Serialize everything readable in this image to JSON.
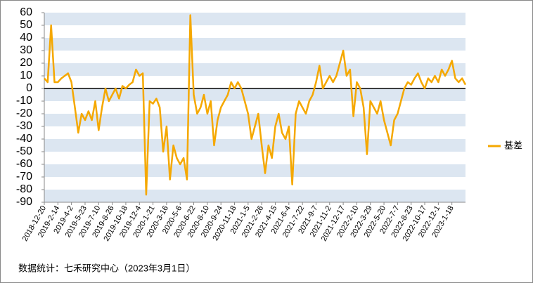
{
  "chart_data": {
    "type": "line",
    "categories": [
      "2018-12-20",
      null,
      null,
      null,
      "2019-2-14",
      null,
      null,
      null,
      "2019-4-2",
      null,
      null,
      null,
      "2019-5-23",
      null,
      null,
      null,
      "2019-7-10",
      null,
      null,
      null,
      "2019-8-26",
      null,
      null,
      null,
      "2019-10-18",
      null,
      null,
      null,
      "2019-12-4",
      null,
      null,
      null,
      "2020-1-21",
      null,
      null,
      null,
      "2020-3-16",
      null,
      null,
      null,
      "2020-5-6",
      null,
      null,
      null,
      "2020-6-22",
      null,
      null,
      null,
      "2020-8-10",
      null,
      null,
      null,
      "2020-9-24",
      null,
      null,
      null,
      "2020-11-18",
      null,
      null,
      null,
      "2021-1-5",
      null,
      null,
      null,
      "2021-2-26",
      null,
      null,
      null,
      "2021-4-15",
      null,
      null,
      null,
      "2021-6-4",
      null,
      null,
      null,
      "2021-7-22",
      null,
      null,
      null,
      "2021-9-7",
      null,
      null,
      null,
      "2021-11-2",
      null,
      null,
      null,
      "2021-12-17",
      null,
      null,
      null,
      "2022-2-10",
      null,
      null,
      null,
      "2022-3-29",
      null,
      null,
      null,
      "2022-5-20",
      null,
      null,
      null,
      "2022-7-7",
      null,
      null,
      null,
      "2022-8-23",
      null,
      null,
      null,
      "2022-10-17",
      null,
      null,
      null,
      "2022-12-1",
      null,
      null,
      null,
      "2023-1-18",
      null,
      null,
      null,
      null
    ],
    "series": [
      {
        "name": "基差",
        "color": "#f5a800",
        "values": [
          8,
          5,
          50,
          5,
          5,
          8,
          10,
          12,
          5,
          -15,
          -35,
          -20,
          -25,
          -18,
          -25,
          -10,
          -33,
          -15,
          0,
          -10,
          -5,
          0,
          -8,
          2,
          0,
          3,
          5,
          15,
          10,
          12,
          -84,
          -10,
          -12,
          -8,
          -15,
          -50,
          -30,
          -72,
          -45,
          -55,
          -60,
          -55,
          -72,
          58,
          -5,
          -20,
          -15,
          -5,
          -20,
          -10,
          -45,
          -25,
          -15,
          -10,
          -5,
          5,
          0,
          5,
          0,
          -10,
          -20,
          -40,
          -30,
          -20,
          -45,
          -67,
          -45,
          -55,
          -30,
          -20,
          -35,
          -40,
          -30,
          -76,
          -20,
          -10,
          -15,
          -20,
          -10,
          -5,
          5,
          18,
          0,
          5,
          10,
          5,
          10,
          20,
          30,
          10,
          15,
          -22,
          5,
          0,
          -15,
          -52,
          -10,
          -15,
          -20,
          -10,
          -25,
          -35,
          -45,
          -25,
          -20,
          -10,
          0,
          5,
          3,
          8,
          12,
          5,
          0,
          8,
          5,
          10,
          5,
          15,
          10,
          15,
          22,
          8,
          5,
          8,
          3
        ]
      }
    ],
    "ylim": [
      -90,
      60
    ],
    "yticks": [
      60,
      50,
      40,
      30,
      20,
      10,
      0,
      -10,
      -20,
      -30,
      -40,
      -50,
      -60,
      -70,
      -80,
      -90
    ],
    "stripes": true,
    "zero_line": true,
    "legend": "right",
    "source": "数据统计：七禾研究中心（2023年3月1日）"
  }
}
